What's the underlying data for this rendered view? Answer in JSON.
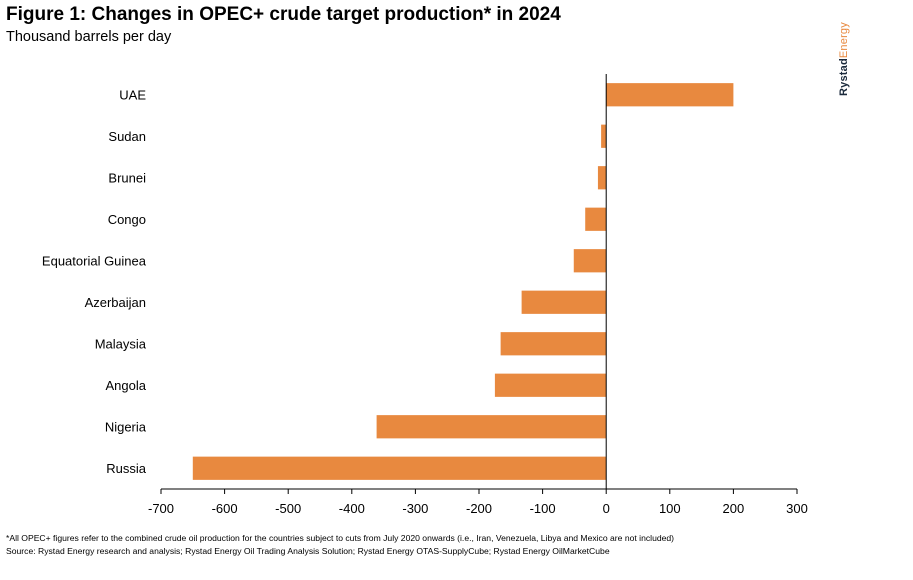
{
  "figure": {
    "title": "Figure 1: Changes in OPEC+ crude target production* in 2024",
    "subtitle": "Thousand barrels per day"
  },
  "brand": {
    "bold": "Rystad",
    "light": "Energy"
  },
  "colors": {
    "bar": "#e8893f",
    "axis": "#000000"
  },
  "chart_data": {
    "type": "bar",
    "orientation": "horizontal",
    "title": "Changes in OPEC+ crude target production* in 2024",
    "xlabel": "Thousand barrels per day",
    "ylabel": "",
    "xlim": [
      -700,
      300
    ],
    "xticks": [
      -700,
      -600,
      -500,
      -400,
      -300,
      -200,
      -100,
      0,
      100,
      200,
      300
    ],
    "grid": false,
    "categories": [
      "UAE",
      "Sudan",
      "Brunei",
      "Congo",
      "Equatorial Guinea",
      "Azerbaijan",
      "Malaysia",
      "Angola",
      "Nigeria",
      "Russia"
    ],
    "values": [
      200,
      -8,
      -13,
      -33,
      -51,
      -133,
      -166,
      -175,
      -361,
      -650
    ]
  },
  "notes": {
    "footnote": "*All OPEC+ figures refer to the combined crude oil production for the countries subject to cuts from July 2020 onwards (i.e., Iran, Venezuela, Libya and Mexico are not included)",
    "source": "Source: Rystad Energy research and analysis; Rystad Energy Oil Trading Analysis Solution; Rystad Energy OTAS-SupplyCube; Rystad Energy OilMarketCube"
  }
}
